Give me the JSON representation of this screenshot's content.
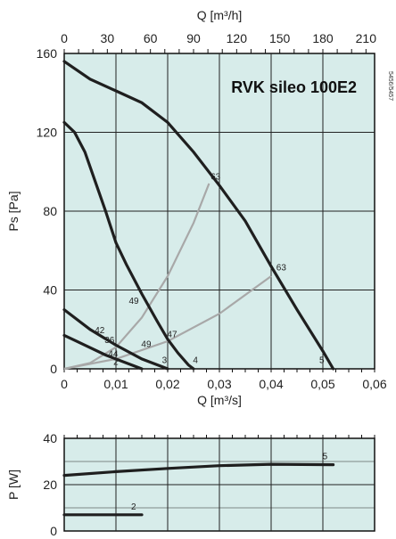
{
  "chart_data": [
    {
      "type": "line",
      "title": "RVK sileo 100E2",
      "side_code": "5456/5457",
      "xlabel": "Q [m³/s]",
      "ylabel": "Ps [Pa]",
      "top_xlabel": "Q [m³/h]",
      "xlim": [
        0,
        0.06
      ],
      "ylim": [
        0,
        160
      ],
      "x_ticks": [
        "0",
        "0,01",
        "0,02",
        "0,03",
        "0,04",
        "0,05",
        "0,06"
      ],
      "y_ticks": [
        "0",
        "40",
        "80",
        "120",
        "160"
      ],
      "top_ticks": [
        "0",
        "30",
        "60",
        "90",
        "120",
        "150",
        "180",
        "210"
      ],
      "grid": true,
      "colors": {
        "background": "#d7ecea",
        "curve": "#1f1f1f",
        "efficiency": "#a8a8a8",
        "grid": "#222222"
      },
      "series": [
        {
          "name": "5",
          "x": [
            0,
            0.005,
            0.01,
            0.015,
            0.02,
            0.025,
            0.03,
            0.035,
            0.04,
            0.045,
            0.05,
            0.052
          ],
          "y": [
            156,
            147,
            141,
            135,
            125,
            110,
            93,
            75,
            52,
            30,
            9,
            0
          ]
        },
        {
          "name": "4",
          "x": [
            0,
            0.002,
            0.004,
            0.006,
            0.008,
            0.01,
            0.012,
            0.015,
            0.018,
            0.02,
            0.022,
            0.024,
            0.025
          ],
          "y": [
            125,
            120,
            110,
            95,
            80,
            64,
            53,
            38,
            24,
            15,
            8,
            2,
            0
          ]
        },
        {
          "name": "3",
          "x": [
            0,
            0.005,
            0.01,
            0.015,
            0.02
          ],
          "y": [
            30,
            20,
            12,
            5,
            0
          ]
        },
        {
          "name": "2",
          "x": [
            0,
            0.004,
            0.008,
            0.012,
            0.015
          ],
          "y": [
            17,
            12,
            7,
            3,
            0
          ]
        }
      ],
      "efficiency_curves": [
        {
          "label": "63",
          "x": [
            0,
            0.005,
            0.01,
            0.015,
            0.02,
            0.025,
            0.028
          ],
          "y": [
            0,
            3,
            11,
            26,
            47,
            74,
            94
          ]
        },
        {
          "label": "63",
          "x": [
            0,
            0.01,
            0.02,
            0.03,
            0.04
          ],
          "y": [
            0,
            5,
            14,
            28,
            47
          ]
        }
      ],
      "annotations": [
        {
          "text": "63",
          "x": 0.0283,
          "y": 96
        },
        {
          "text": "63",
          "x": 0.041,
          "y": 50
        },
        {
          "text": "49",
          "x": 0.0125,
          "y": 33
        },
        {
          "text": "47",
          "x": 0.0199,
          "y": 16
        },
        {
          "text": "49",
          "x": 0.0149,
          "y": 11
        },
        {
          "text": "42",
          "x": 0.0059,
          "y": 18
        },
        {
          "text": "36",
          "x": 0.0078,
          "y": 13
        },
        {
          "text": "44",
          "x": 0.0085,
          "y": 6
        },
        {
          "text": "2",
          "x": 0.0095,
          "y": 2
        },
        {
          "text": "3",
          "x": 0.0189,
          "y": 3
        },
        {
          "text": "4",
          "x": 0.0249,
          "y": 3
        },
        {
          "text": "5",
          "x": 0.0493,
          "y": 3
        }
      ]
    },
    {
      "type": "line",
      "title": "",
      "xlabel": "",
      "ylabel": "P [W]",
      "xlim": [
        0,
        0.06
      ],
      "ylim": [
        0,
        40
      ],
      "y_ticks": [
        "0",
        "20",
        "40"
      ],
      "grid": true,
      "series": [
        {
          "name": "5",
          "x": [
            0,
            0.01,
            0.02,
            0.03,
            0.04,
            0.052
          ],
          "y": [
            24,
            25.6,
            27,
            28.2,
            28.8,
            28.6
          ]
        },
        {
          "name": "2",
          "x": [
            0,
            0.015
          ],
          "y": [
            7,
            7
          ]
        }
      ]
    }
  ]
}
